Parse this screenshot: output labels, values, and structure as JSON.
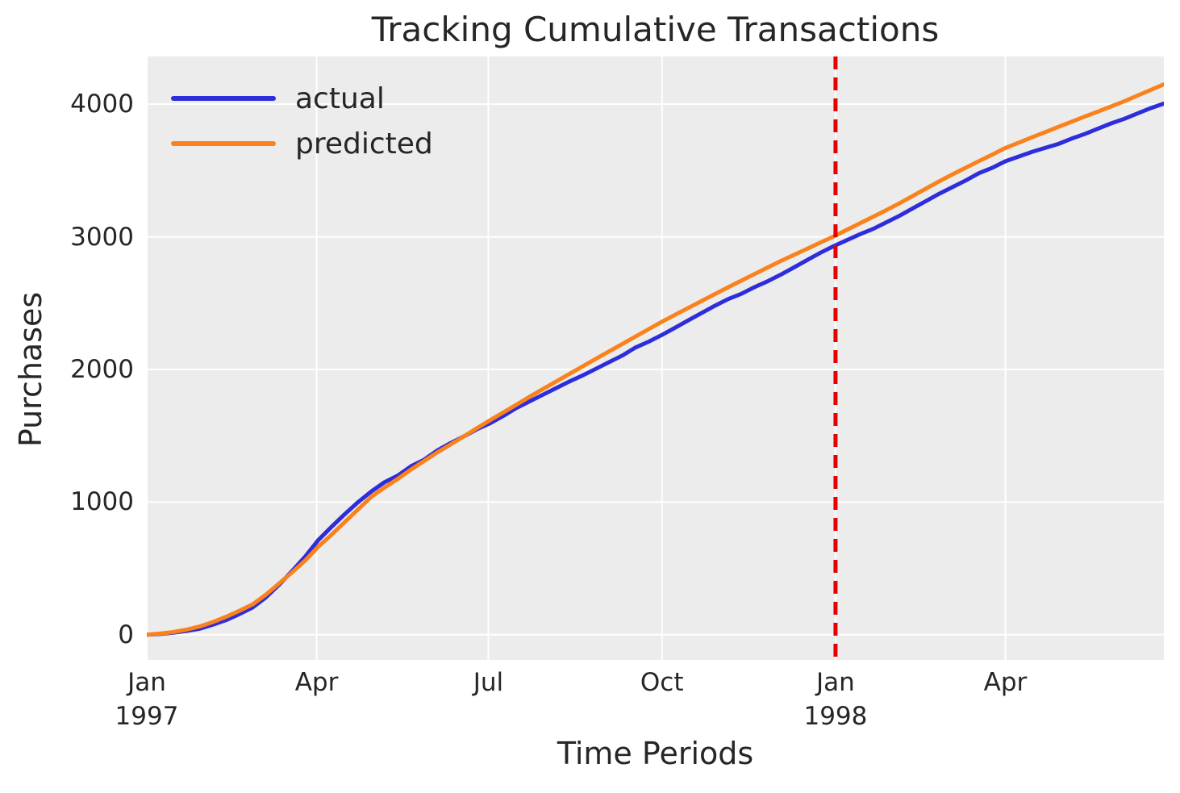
{
  "figure": {
    "title": "Tracking Cumulative Transactions",
    "xlabel": "Time Periods",
    "ylabel": "Purchases"
  },
  "colors": {
    "page_bg": "#ffffff",
    "plot_bg": "#ececec",
    "grid": "#ffffff",
    "text": "#262626",
    "actual": "#2d2ddb",
    "predicted": "#f9821d",
    "vline": "#e60000"
  },
  "chart_data": {
    "type": "line",
    "title": "Tracking Cumulative Transactions",
    "xlabel": "Time Periods",
    "ylabel": "Purchases",
    "grid": true,
    "legend_position": "upper left",
    "x_unit": "days since Jan 1 1997 (weekly samples)",
    "xlim": [
      0,
      539
    ],
    "ylim": [
      -190,
      4360
    ],
    "x": [
      0,
      7,
      14,
      21,
      28,
      35,
      42,
      49,
      56,
      63,
      70,
      77,
      84,
      91,
      98,
      105,
      112,
      119,
      126,
      133,
      140,
      147,
      154,
      161,
      168,
      175,
      182,
      189,
      196,
      203,
      210,
      217,
      224,
      231,
      238,
      245,
      252,
      259,
      266,
      273,
      280,
      287,
      294,
      301,
      308,
      315,
      322,
      329,
      336,
      343,
      350,
      357,
      364,
      371,
      378,
      385,
      392,
      399,
      406,
      413,
      420,
      427,
      434,
      441,
      448,
      455,
      462,
      469,
      476,
      483,
      490,
      497,
      504,
      511,
      518,
      525,
      532,
      539
    ],
    "series": [
      {
        "name": "actual",
        "color": "#2d2ddb",
        "values": [
          0,
          5,
          15,
          28,
          45,
          75,
          110,
          155,
          205,
          280,
          375,
          480,
          590,
          715,
          815,
          910,
          1000,
          1080,
          1150,
          1200,
          1270,
          1320,
          1390,
          1445,
          1495,
          1550,
          1595,
          1650,
          1710,
          1760,
          1810,
          1860,
          1910,
          1955,
          2005,
          2055,
          2105,
          2165,
          2210,
          2260,
          2315,
          2370,
          2425,
          2480,
          2530,
          2570,
          2620,
          2665,
          2715,
          2770,
          2825,
          2880,
          2930,
          2975,
          3020,
          3060,
          3110,
          3160,
          3215,
          3270,
          3325,
          3375,
          3425,
          3480,
          3520,
          3570,
          3605,
          3640,
          3670,
          3700,
          3740,
          3775,
          3815,
          3855,
          3890,
          3930,
          3970,
          4005
        ]
      },
      {
        "name": "predicted",
        "color": "#f9821d",
        "values": [
          0,
          8,
          20,
          38,
          62,
          95,
          135,
          180,
          228,
          300,
          385,
          470,
          560,
          665,
          755,
          850,
          945,
          1040,
          1110,
          1175,
          1245,
          1310,
          1375,
          1435,
          1495,
          1557,
          1618,
          1677,
          1735,
          1795,
          1853,
          1910,
          1967,
          2023,
          2080,
          2136,
          2192,
          2248,
          2304,
          2360,
          2412,
          2464,
          2516,
          2568,
          2619,
          2669,
          2719,
          2769,
          2818,
          2864,
          2910,
          2957,
          3003,
          3053,
          3102,
          3152,
          3202,
          3254,
          3309,
          3364,
          3419,
          3471,
          3521,
          3571,
          3620,
          3670,
          3710,
          3750,
          3789,
          3829,
          3867,
          3906,
          3944,
          3983,
          4022,
          4065,
          4107,
          4150
        ]
      }
    ],
    "y_ticks": [
      {
        "value": 0,
        "label": "0"
      },
      {
        "value": 1000,
        "label": "1000"
      },
      {
        "value": 2000,
        "label": "2000"
      },
      {
        "value": 3000,
        "label": "3000"
      },
      {
        "value": 4000,
        "label": "4000"
      }
    ],
    "x_ticks": [
      {
        "x": 0,
        "label": "Jan",
        "sublabel": "1997"
      },
      {
        "x": 90,
        "label": "Apr",
        "sublabel": ""
      },
      {
        "x": 181,
        "label": "Jul",
        "sublabel": ""
      },
      {
        "x": 273,
        "label": "Oct",
        "sublabel": ""
      },
      {
        "x": 365,
        "label": "Jan",
        "sublabel": "1998"
      },
      {
        "x": 455,
        "label": "Apr",
        "sublabel": ""
      }
    ],
    "vline": {
      "x": 365,
      "color": "#e60000",
      "style": "dashed"
    },
    "legend": [
      {
        "label": "actual",
        "color": "#2d2ddb"
      },
      {
        "label": "predicted",
        "color": "#f9821d"
      }
    ]
  }
}
